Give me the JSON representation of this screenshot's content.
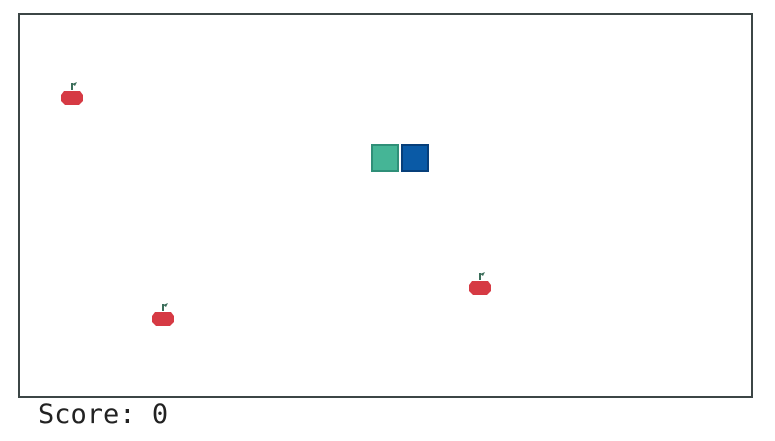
{
  "score": {
    "label": "Score:",
    "value": "0"
  },
  "colors": {
    "apple": "#d63a44",
    "apple_stem": "#3b6e5a",
    "snake_body": "#45b596",
    "snake_head": "#0a5aa6",
    "board_border": "#3c4646"
  },
  "icons": {
    "apple": "apple-icon",
    "snake_head": "snake-head",
    "snake_body": "snake-body-segment"
  }
}
